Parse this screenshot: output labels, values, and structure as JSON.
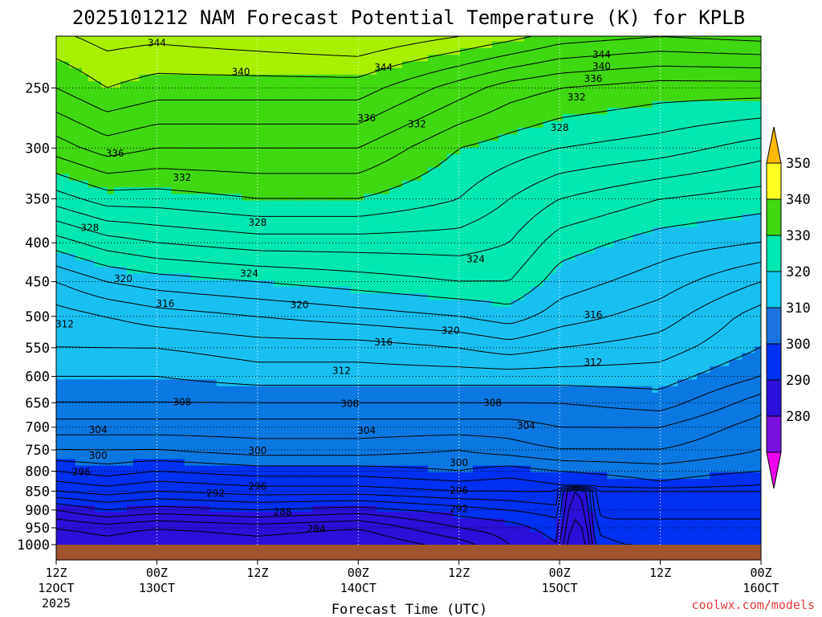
{
  "title": "2025101212 NAM Forecast Potential Temperature (K) for KPLB",
  "xlabel": "Forecast Time (UTC)",
  "watermark": "coolwx.com/models",
  "chart_data": {
    "type": "contour",
    "variable": "Potential Temperature",
    "units": "K",
    "y_axis": {
      "quantity": "pressure (hPa)",
      "range": [
        1000,
        200
      ],
      "ticks": [
        250,
        300,
        350,
        400,
        450,
        500,
        550,
        600,
        650,
        700,
        750,
        800,
        850,
        900,
        950,
        1000
      ]
    },
    "x_axis": {
      "ticks": [
        {
          "hour": 0,
          "label": "12Z",
          "date": "12OCT",
          "year": "2025"
        },
        {
          "hour": 12,
          "label": "00Z",
          "date": "13OCT",
          "year": ""
        },
        {
          "hour": 24,
          "label": "12Z",
          "date": "",
          "year": ""
        },
        {
          "hour": 36,
          "label": "00Z",
          "date": "14OCT",
          "year": ""
        },
        {
          "hour": 48,
          "label": "12Z",
          "date": "",
          "year": ""
        },
        {
          "hour": 60,
          "label": "00Z",
          "date": "15OCT",
          "year": ""
        },
        {
          "hour": 72,
          "label": "12Z",
          "date": "",
          "year": ""
        },
        {
          "hour": 84,
          "label": "00Z",
          "date": "16OCT",
          "year": ""
        }
      ],
      "range": [
        0,
        84
      ]
    },
    "grid": true,
    "contour_interval": 2,
    "fill_levels": [
      280,
      290,
      300,
      310,
      320,
      330,
      340,
      350
    ],
    "fill_colors": [
      "#6a00e0",
      "#2a10d8",
      "#0030f0",
      "#0a78e0",
      "#18c0f0",
      "#00e8b0",
      "#40d810",
      "#a8f000",
      "#ffff20"
    ],
    "colorbar": {
      "labels": [
        "280",
        "290",
        "300",
        "310",
        "320",
        "330",
        "340",
        "350"
      ],
      "colors": [
        "#ee00ee",
        "#7a10e0",
        "#2a10d8",
        "#0030f0",
        "#1b73e0",
        "#10c8f0",
        "#00e8b0",
        "#40d810",
        "#ffff20",
        "#ffb800"
      ]
    },
    "ground_color": "#a0522d",
    "profiles": [
      {
        "hour": 0,
        "isentropes": [
          [
            1000,
            282
          ],
          [
            950,
            284
          ],
          [
            900,
            288
          ],
          [
            850,
            294
          ],
          [
            800,
            298
          ],
          [
            750,
            302
          ],
          [
            700,
            305
          ],
          [
            650,
            308
          ],
          [
            600,
            310
          ],
          [
            550,
            312
          ],
          [
            500,
            313
          ],
          [
            450,
            316
          ],
          [
            400,
            321
          ],
          [
            350,
            327
          ],
          [
            300,
            333
          ],
          [
            250,
            338
          ],
          [
            200,
            343
          ]
        ]
      },
      {
        "hour": 6,
        "isentropes": [
          [
            1000,
            283
          ],
          [
            950,
            285
          ],
          [
            900,
            290
          ],
          [
            850,
            295
          ],
          [
            800,
            299
          ],
          [
            750,
            302
          ],
          [
            700,
            305
          ],
          [
            650,
            308
          ],
          [
            600,
            310
          ],
          [
            550,
            312
          ],
          [
            500,
            314
          ],
          [
            450,
            318
          ],
          [
            400,
            323
          ],
          [
            350,
            329
          ],
          [
            300,
            335
          ],
          [
            250,
            340
          ],
          [
            200,
            344
          ]
        ]
      },
      {
        "hour": 12,
        "isentropes": [
          [
            1000,
            282
          ],
          [
            950,
            284
          ],
          [
            900,
            289
          ],
          [
            850,
            294
          ],
          [
            800,
            298
          ],
          [
            750,
            302
          ],
          [
            700,
            305
          ],
          [
            650,
            308
          ],
          [
            600,
            310
          ],
          [
            550,
            312
          ],
          [
            500,
            315
          ],
          [
            450,
            319
          ],
          [
            400,
            324
          ],
          [
            350,
            329
          ],
          [
            300,
            334
          ],
          [
            250,
            339
          ],
          [
            200,
            344
          ]
        ]
      },
      {
        "hour": 24,
        "isentropes": [
          [
            1000,
            283
          ],
          [
            950,
            285
          ],
          [
            900,
            290
          ],
          [
            850,
            295
          ],
          [
            800,
            299
          ],
          [
            750,
            303
          ],
          [
            700,
            305
          ],
          [
            650,
            308
          ],
          [
            600,
            311
          ],
          [
            550,
            313
          ],
          [
            500,
            316
          ],
          [
            450,
            320
          ],
          [
            400,
            325
          ],
          [
            350,
            330
          ],
          [
            300,
            334
          ],
          [
            250,
            339
          ],
          [
            200,
            345
          ]
        ]
      },
      {
        "hour": 36,
        "isentropes": [
          [
            1000,
            282
          ],
          [
            950,
            284
          ],
          [
            900,
            289
          ],
          [
            850,
            295
          ],
          [
            800,
            299
          ],
          [
            750,
            303
          ],
          [
            700,
            305
          ],
          [
            650,
            308
          ],
          [
            600,
            311
          ],
          [
            550,
            313
          ],
          [
            500,
            317
          ],
          [
            450,
            321
          ],
          [
            400,
            325
          ],
          [
            350,
            330
          ],
          [
            300,
            334
          ],
          [
            250,
            339
          ],
          [
            200,
            346
          ]
        ]
      },
      {
        "hour": 48,
        "isentropes": [
          [
            1000,
            285
          ],
          [
            950,
            288
          ],
          [
            900,
            291
          ],
          [
            850,
            296
          ],
          [
            800,
            300
          ],
          [
            750,
            302
          ],
          [
            700,
            305
          ],
          [
            650,
            308
          ],
          [
            600,
            311
          ],
          [
            550,
            314
          ],
          [
            500,
            318
          ],
          [
            450,
            322
          ],
          [
            400,
            325
          ],
          [
            350,
            328
          ],
          [
            300,
            330
          ],
          [
            250,
            335
          ],
          [
            200,
            345
          ]
        ]
      },
      {
        "hour": 54,
        "isentropes": [
          [
            1000,
            288
          ],
          [
            950,
            289
          ],
          [
            900,
            292
          ],
          [
            850,
            296
          ],
          [
            800,
            299
          ],
          [
            750,
            303
          ],
          [
            700,
            305
          ],
          [
            650,
            308
          ],
          [
            600,
            311
          ],
          [
            550,
            315
          ],
          [
            500,
            319
          ],
          [
            450,
            322
          ],
          [
            400,
            324
          ],
          [
            350,
            326
          ],
          [
            300,
            329
          ],
          [
            250,
            333
          ],
          [
            200,
            344
          ]
        ]
      },
      {
        "hour": 60,
        "isentropes": [
          [
            1000,
            290
          ],
          [
            950,
            291
          ],
          [
            900,
            293
          ],
          [
            850,
            297
          ],
          [
            800,
            300
          ],
          [
            750,
            304
          ],
          [
            700,
            306
          ],
          [
            650,
            308
          ],
          [
            600,
            311
          ],
          [
            550,
            314
          ],
          [
            500,
            317
          ],
          [
            450,
            319
          ],
          [
            400,
            321
          ],
          [
            350,
            324
          ],
          [
            300,
            328
          ],
          [
            250,
            332
          ],
          [
            200,
            342
          ]
        ]
      },
      {
        "hour": 72,
        "isentropes": [
          [
            1000,
            293
          ],
          [
            950,
            295
          ],
          [
            900,
            297
          ],
          [
            850,
            299
          ],
          [
            800,
            301
          ],
          [
            750,
            304
          ],
          [
            700,
            306
          ],
          [
            650,
            309
          ],
          [
            600,
            311
          ],
          [
            550,
            313
          ],
          [
            500,
            315
          ],
          [
            450,
            317
          ],
          [
            400,
            319
          ],
          [
            350,
            322
          ],
          [
            300,
            327
          ],
          [
            250,
            331
          ],
          [
            200,
            341
          ]
        ]
      },
      {
        "hour": 84,
        "isentropes": [
          [
            1000,
            292
          ],
          [
            950,
            294
          ],
          [
            900,
            296
          ],
          [
            850,
            297
          ],
          [
            800,
            300
          ],
          [
            750,
            302
          ],
          [
            700,
            303
          ],
          [
            650,
            305
          ],
          [
            600,
            308
          ],
          [
            550,
            310
          ],
          [
            500,
            311
          ],
          [
            450,
            314
          ],
          [
            400,
            318
          ],
          [
            350,
            321
          ],
          [
            300,
            325
          ],
          [
            250,
            331
          ],
          [
            200,
            342
          ]
        ]
      }
    ],
    "contour_labels": [
      {
        "hour": 12,
        "p": 218,
        "v": "344"
      },
      {
        "hour": 22,
        "p": 238,
        "v": "340"
      },
      {
        "hour": 39,
        "p": 235,
        "v": "344"
      },
      {
        "hour": 65,
        "p": 226,
        "v": "344"
      },
      {
        "hour": 65,
        "p": 234,
        "v": "340"
      },
      {
        "hour": 64,
        "p": 243,
        "v": "336"
      },
      {
        "hour": 62,
        "p": 257,
        "v": "332"
      },
      {
        "hour": 37,
        "p": 274,
        "v": "336"
      },
      {
        "hour": 43,
        "p": 279,
        "v": "332"
      },
      {
        "hour": 60,
        "p": 282,
        "v": "328"
      },
      {
        "hour": 7,
        "p": 305,
        "v": "336"
      },
      {
        "hour": 15,
        "p": 328,
        "v": "332"
      },
      {
        "hour": 4,
        "p": 382,
        "v": "328"
      },
      {
        "hour": 24,
        "p": 376,
        "v": "328"
      },
      {
        "hour": 50,
        "p": 420,
        "v": "324"
      },
      {
        "hour": 23,
        "p": 439,
        "v": "324"
      },
      {
        "hour": 8,
        "p": 446,
        "v": "320"
      },
      {
        "hour": 29,
        "p": 483,
        "v": "320"
      },
      {
        "hour": 47,
        "p": 522,
        "v": "320"
      },
      {
        "hour": 13,
        "p": 481,
        "v": "316"
      },
      {
        "hour": 64,
        "p": 498,
        "v": "316"
      },
      {
        "hour": 39,
        "p": 541,
        "v": "316"
      },
      {
        "hour": 1,
        "p": 512,
        "v": "312"
      },
      {
        "hour": 34,
        "p": 590,
        "v": "312"
      },
      {
        "hour": 64,
        "p": 575,
        "v": "312"
      },
      {
        "hour": 15,
        "p": 649,
        "v": "308"
      },
      {
        "hour": 35,
        "p": 652,
        "v": "308"
      },
      {
        "hour": 52,
        "p": 650,
        "v": "308"
      },
      {
        "hour": 56,
        "p": 697,
        "v": "304"
      },
      {
        "hour": 5,
        "p": 706,
        "v": "304"
      },
      {
        "hour": 37,
        "p": 707,
        "v": "304"
      },
      {
        "hour": 5,
        "p": 763,
        "v": "300"
      },
      {
        "hour": 24,
        "p": 752,
        "v": "300"
      },
      {
        "hour": 48,
        "p": 780,
        "v": "300"
      },
      {
        "hour": 3,
        "p": 802,
        "v": "296"
      },
      {
        "hour": 24,
        "p": 838,
        "v": "296"
      },
      {
        "hour": 48,
        "p": 848,
        "v": "296"
      },
      {
        "hour": 19,
        "p": 855,
        "v": "292"
      },
      {
        "hour": 48,
        "p": 897,
        "v": "292"
      },
      {
        "hour": 27,
        "p": 906,
        "v": "288"
      },
      {
        "hour": 31,
        "p": 954,
        "v": "284"
      }
    ],
    "warm_pocket": {
      "hour": 62,
      "p_top": 850,
      "theta": 282
    }
  }
}
